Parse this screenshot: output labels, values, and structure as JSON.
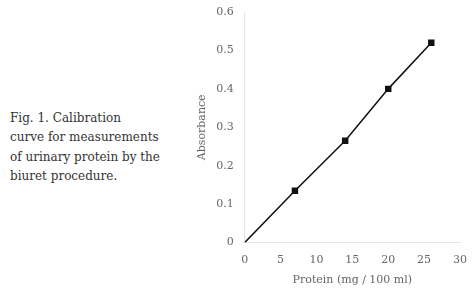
{
  "chart_data": {
    "type": "line",
    "x": [
      0,
      7,
      14,
      20,
      26
    ],
    "values": [
      0,
      0.135,
      0.265,
      0.4,
      0.52
    ],
    "color": "#111111",
    "marker": "square",
    "xlabel": "Protein (mg / 100 ml)",
    "ylabel": "Absorbance",
    "xlim": [
      0,
      30
    ],
    "ylim": [
      0,
      0.6
    ],
    "xticks": [
      0,
      5,
      10,
      15,
      20,
      25,
      30
    ],
    "yticks": [
      0,
      0.1,
      0.2,
      0.3,
      0.4,
      0.5,
      0.6
    ],
    "grid": false,
    "annotations": [
      "Fig. 1. Calibration",
      "curve for measurements",
      "of urinary protein by the",
      "biuret procedure."
    ]
  }
}
